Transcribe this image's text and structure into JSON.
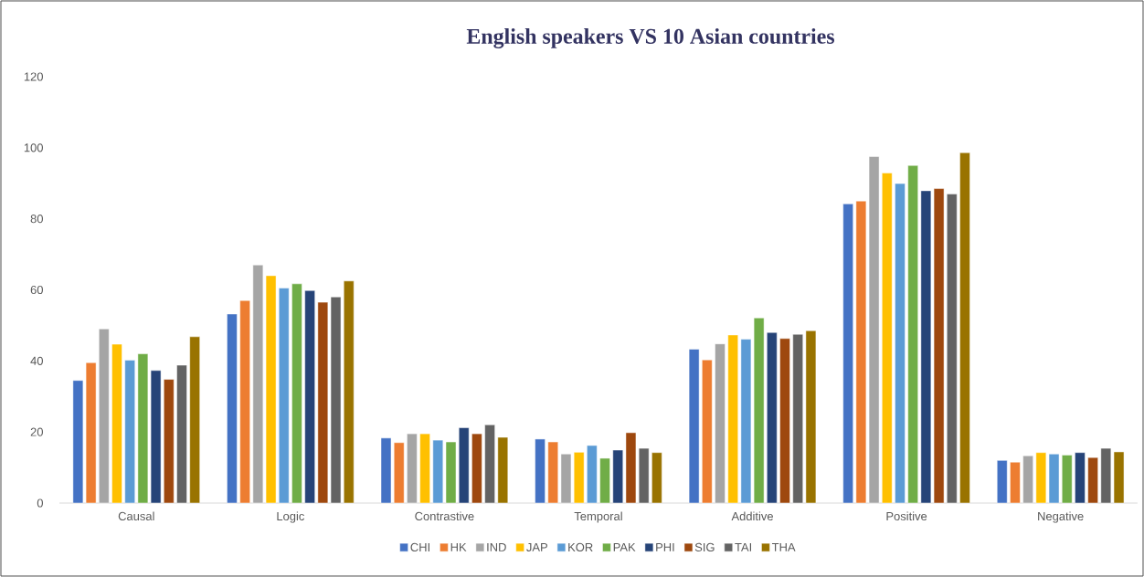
{
  "chart_data": {
    "type": "bar",
    "title": "English speakers VS 10 Asian countries",
    "categories": [
      "Causal",
      "Logic",
      "Contrastive",
      "Temporal",
      "Additive",
      "Positive",
      "Negative"
    ],
    "series": [
      {
        "name": "CHI",
        "color": "#4472c4",
        "values": [
          34.5,
          53.2,
          18.3,
          18,
          43.3,
          84.2,
          12
        ]
      },
      {
        "name": "HK",
        "color": "#ed7d31",
        "values": [
          39.5,
          57,
          17,
          17.2,
          40.3,
          85,
          11.5
        ]
      },
      {
        "name": "IND",
        "color": "#a5a5a5",
        "values": [
          49,
          67,
          19.5,
          13.8,
          44.8,
          97.5,
          13.3
        ]
      },
      {
        "name": "JAP",
        "color": "#ffc000",
        "values": [
          44.7,
          64,
          19.5,
          14.3,
          47.3,
          92.9,
          14.2
        ]
      },
      {
        "name": "KOR",
        "color": "#5b9bd5",
        "values": [
          40.2,
          60.5,
          17.7,
          16.2,
          46.1,
          89.9,
          13.8
        ]
      },
      {
        "name": "PAK",
        "color": "#70ad47",
        "values": [
          42,
          61.7,
          17.2,
          12.6,
          52.1,
          95,
          13.5
        ]
      },
      {
        "name": "PHI",
        "color": "#264478",
        "values": [
          37.3,
          59.8,
          21.2,
          14.9,
          48,
          87.9,
          14.2
        ]
      },
      {
        "name": "SIG",
        "color": "#9e480e",
        "values": [
          34.8,
          56.5,
          19.5,
          19.8,
          46.3,
          88.5,
          12.8
        ]
      },
      {
        "name": "TAI",
        "color": "#636363",
        "values": [
          38.8,
          58,
          22,
          15.4,
          47.5,
          87,
          15.4
        ]
      },
      {
        "name": "THA",
        "color": "#997300",
        "values": [
          46.8,
          62.5,
          18.5,
          14.2,
          48.5,
          98.6,
          14.4
        ]
      }
    ],
    "ylim": [
      0,
      120
    ],
    "yticks": [
      0,
      20,
      40,
      60,
      80,
      100,
      120
    ],
    "legend": "bottom"
  }
}
